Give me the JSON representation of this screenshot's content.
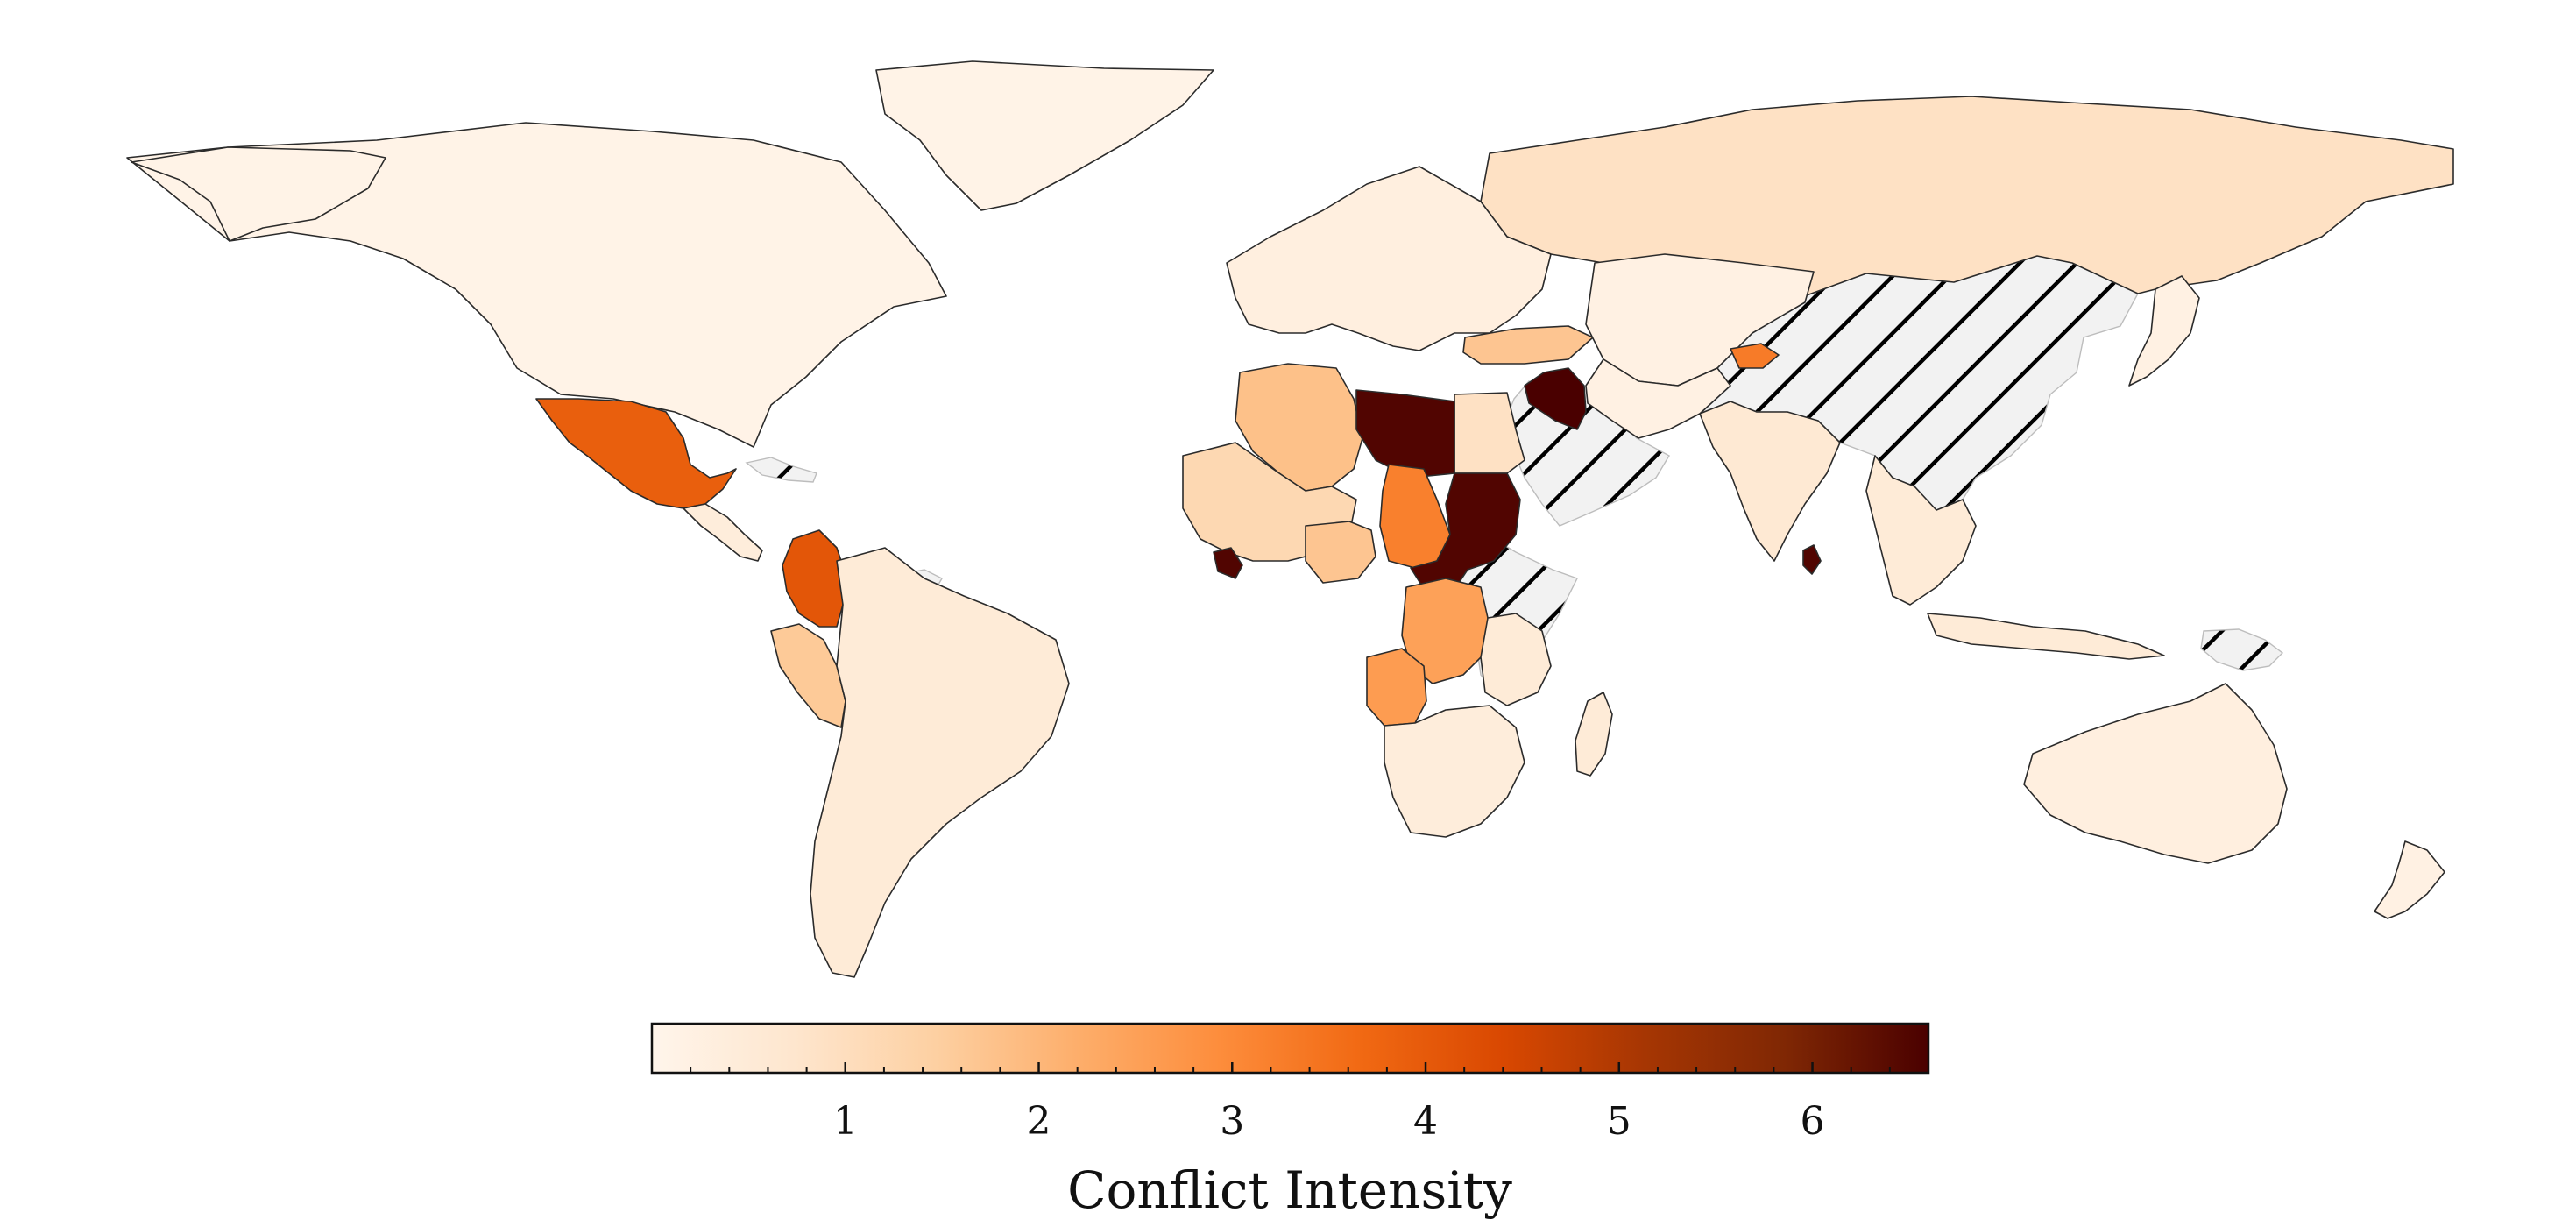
{
  "map": {
    "colorbar": {
      "label": "Conflict Intensity",
      "min": 0,
      "max": 6.6,
      "major_ticks": [
        1,
        2,
        3,
        4,
        5,
        6
      ],
      "minor_step": 0.2,
      "colormap": "Oranges",
      "stops": [
        "#fff5eb",
        "#fee6ce",
        "#fdd0a2",
        "#fdae6b",
        "#fd8d3c",
        "#f16913",
        "#d94801",
        "#a63603",
        "#7f2704",
        "#4a0000"
      ]
    },
    "no_data_pattern": "diagonal-hatch",
    "regions": [
      {
        "name": "north-america",
        "intensity": 0.1
      },
      {
        "name": "greenland",
        "intensity": 0.1
      },
      {
        "name": "mexico",
        "intensity": 3.9
      },
      {
        "name": "central-america",
        "intensity": 0.4
      },
      {
        "name": "colombia",
        "intensity": 4.1
      },
      {
        "name": "peru",
        "intensity": 1.6
      },
      {
        "name": "south-america",
        "intensity": 0.5
      },
      {
        "name": "russia",
        "intensity": 0.9
      },
      {
        "name": "europe",
        "intensity": 0.3
      },
      {
        "name": "turkey",
        "intensity": 1.7
      },
      {
        "name": "iraq",
        "intensity": 6.6
      },
      {
        "name": "libya",
        "intensity": 6.5
      },
      {
        "name": "sudan",
        "intensity": 6.5
      },
      {
        "name": "chad",
        "intensity": 3.2
      },
      {
        "name": "algeria",
        "intensity": 1.8
      },
      {
        "name": "west-africa",
        "intensity": 1.2
      },
      {
        "name": "liberia",
        "intensity": 6.5
      },
      {
        "name": "nigeria",
        "intensity": 1.7
      },
      {
        "name": "egypt",
        "intensity": 0.9
      },
      {
        "name": "dr-congo",
        "intensity": 2.5
      },
      {
        "name": "angola",
        "intensity": 2.6
      },
      {
        "name": "southern-africa",
        "intensity": 0.4
      },
      {
        "name": "east-africa",
        "intensity": 0.5
      },
      {
        "name": "madagascar",
        "intensity": 0.5
      },
      {
        "name": "tajikistan",
        "intensity": 3.3
      },
      {
        "name": "india",
        "intensity": 0.6
      },
      {
        "name": "sri-lanka",
        "intensity": 6.5
      },
      {
        "name": "central-asia",
        "intensity": 0.2
      },
      {
        "name": "southeast-asia",
        "intensity": 0.5
      },
      {
        "name": "japan",
        "intensity": 0.2
      },
      {
        "name": "australia",
        "intensity": 0.3
      },
      {
        "name": "new-zealand",
        "intensity": 0.2
      }
    ],
    "no_data_regions": [
      "china",
      "arabian-peninsula",
      "horn-of-africa",
      "papua",
      "caribbean"
    ]
  }
}
